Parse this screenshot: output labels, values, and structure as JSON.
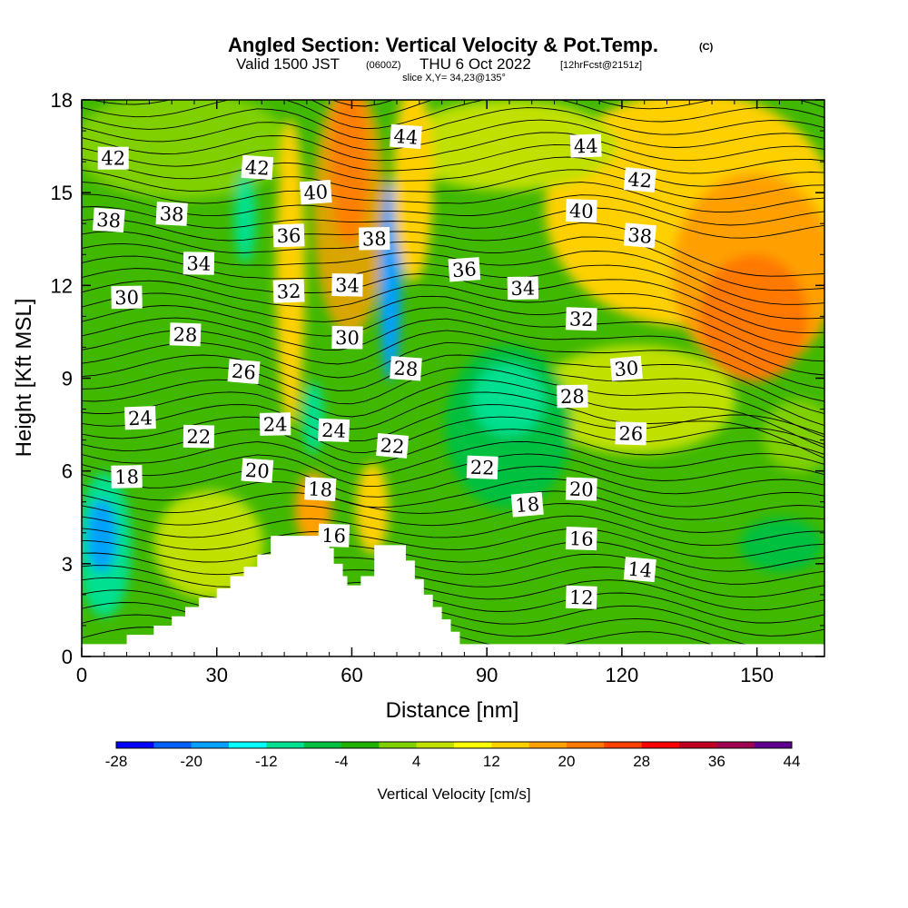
{
  "title": {
    "main": "Angled Section: Vertical Velocity & Pot.Temp.",
    "copyright": "(C)",
    "valid_prefix": "Valid 1500 JST",
    "utc": "(0600Z)",
    "valid_date": "THU 6 Oct 2022",
    "forecast": "[12hrFcst@2151z]",
    "slice": "slice X,Y= 34,23@135°"
  },
  "chart_data": {
    "type": "heatmap",
    "xlabel": "Distance [nm]",
    "ylabel": "Height [Kft MSL]",
    "xlim": [
      0,
      165
    ],
    "ylim": [
      0,
      18
    ],
    "x_ticks": [
      "0",
      "30",
      "60",
      "90",
      "120",
      "150"
    ],
    "y_ticks": [
      "0",
      "3",
      "6",
      "9",
      "12",
      "15",
      "18"
    ],
    "colorbar": {
      "title": "Vertical Velocity [cm/s]",
      "tick_labels": [
        "-28",
        "-20",
        "-12",
        "-4",
        "4",
        "12",
        "20",
        "28",
        "36",
        "44"
      ],
      "levels": [
        -28,
        -24,
        -20,
        -16,
        -12,
        -8,
        -4,
        0,
        4,
        8,
        12,
        16,
        20,
        24,
        28,
        32,
        36,
        40,
        44
      ],
      "colors": [
        "#0000ff",
        "#0060ff",
        "#00a0ff",
        "#00ffff",
        "#00e090",
        "#00c040",
        "#20b000",
        "#80d000",
        "#c0e000",
        "#ffff00",
        "#ffd000",
        "#ffa000",
        "#ff7800",
        "#ff4000",
        "#ff0000",
        "#c00020",
        "#a00050",
        "#600090"
      ]
    },
    "terrain_kft": [
      [
        0,
        0.4
      ],
      [
        10,
        0.4
      ],
      [
        10,
        0.7
      ],
      [
        16,
        0.7
      ],
      [
        16,
        1.0
      ],
      [
        20,
        1.0
      ],
      [
        20,
        1.3
      ],
      [
        23,
        1.3
      ],
      [
        23,
        1.6
      ],
      [
        26,
        1.6
      ],
      [
        26,
        1.9
      ],
      [
        30,
        1.9
      ],
      [
        30,
        2.2
      ],
      [
        33,
        2.2
      ],
      [
        33,
        2.6
      ],
      [
        36,
        2.6
      ],
      [
        36,
        2.9
      ],
      [
        39,
        2.9
      ],
      [
        39,
        3.3
      ],
      [
        42,
        3.3
      ],
      [
        42,
        3.9
      ],
      [
        55,
        3.9
      ],
      [
        55,
        3.5
      ],
      [
        56,
        3.5
      ],
      [
        56,
        3.0
      ],
      [
        58,
        3.0
      ],
      [
        58,
        2.6
      ],
      [
        59,
        2.6
      ],
      [
        59,
        2.3
      ],
      [
        62,
        2.3
      ],
      [
        62,
        2.6
      ],
      [
        65,
        2.6
      ],
      [
        65,
        3.6
      ],
      [
        72,
        3.6
      ],
      [
        72,
        3.1
      ],
      [
        74,
        3.1
      ],
      [
        74,
        2.5
      ],
      [
        76,
        2.5
      ],
      [
        76,
        2.0
      ],
      [
        78,
        2.0
      ],
      [
        78,
        1.6
      ],
      [
        80,
        1.6
      ],
      [
        80,
        1.2
      ],
      [
        82,
        1.2
      ],
      [
        82,
        0.8
      ],
      [
        84,
        0.8
      ],
      [
        84,
        0.4
      ],
      [
        165,
        0.4
      ]
    ],
    "contour_labels": [
      {
        "text": "44",
        "x": 72,
        "y": 16.8
      },
      {
        "text": "44",
        "x": 112,
        "y": 16.5
      },
      {
        "text": "42",
        "x": 7,
        "y": 16.1
      },
      {
        "text": "42",
        "x": 39,
        "y": 15.8
      },
      {
        "text": "42",
        "x": 124,
        "y": 15.4
      },
      {
        "text": "40",
        "x": 52,
        "y": 15.0
      },
      {
        "text": "40",
        "x": 111,
        "y": 14.4
      },
      {
        "text": "38",
        "x": 6,
        "y": 14.1
      },
      {
        "text": "38",
        "x": 20,
        "y": 14.3
      },
      {
        "text": "38",
        "x": 65,
        "y": 13.5
      },
      {
        "text": "38",
        "x": 124,
        "y": 13.6
      },
      {
        "text": "36",
        "x": 46,
        "y": 13.6
      },
      {
        "text": "36",
        "x": 85,
        "y": 12.5
      },
      {
        "text": "34",
        "x": 26,
        "y": 12.7
      },
      {
        "text": "34",
        "x": 59,
        "y": 12.0
      },
      {
        "text": "34",
        "x": 98,
        "y": 11.9
      },
      {
        "text": "32",
        "x": 46,
        "y": 11.8
      },
      {
        "text": "32",
        "x": 111,
        "y": 10.9
      },
      {
        "text": "30",
        "x": 10,
        "y": 11.6
      },
      {
        "text": "30",
        "x": 59,
        "y": 10.3
      },
      {
        "text": "30",
        "x": 121,
        "y": 9.3
      },
      {
        "text": "28",
        "x": 23,
        "y": 10.4
      },
      {
        "text": "28",
        "x": 72,
        "y": 9.3
      },
      {
        "text": "28",
        "x": 109,
        "y": 8.4
      },
      {
        "text": "26",
        "x": 36,
        "y": 9.2
      },
      {
        "text": "26",
        "x": 122,
        "y": 7.2
      },
      {
        "text": "24",
        "x": 13,
        "y": 7.7
      },
      {
        "text": "24",
        "x": 43,
        "y": 7.5
      },
      {
        "text": "24",
        "x": 56,
        "y": 7.3
      },
      {
        "text": "22",
        "x": 26,
        "y": 7.1
      },
      {
        "text": "22",
        "x": 69,
        "y": 6.8
      },
      {
        "text": "22",
        "x": 89,
        "y": 6.1
      },
      {
        "text": "20",
        "x": 39,
        "y": 6.0
      },
      {
        "text": "20",
        "x": 111,
        "y": 5.4
      },
      {
        "text": "18",
        "x": 10,
        "y": 5.8
      },
      {
        "text": "18",
        "x": 53,
        "y": 5.4
      },
      {
        "text": "18",
        "x": 99,
        "y": 4.9
      },
      {
        "text": "16",
        "x": 56,
        "y": 3.9
      },
      {
        "text": "16",
        "x": 111,
        "y": 3.8
      },
      {
        "text": "14",
        "x": 124,
        "y": 2.8
      },
      {
        "text": "12",
        "x": 111,
        "y": 1.9
      }
    ]
  }
}
